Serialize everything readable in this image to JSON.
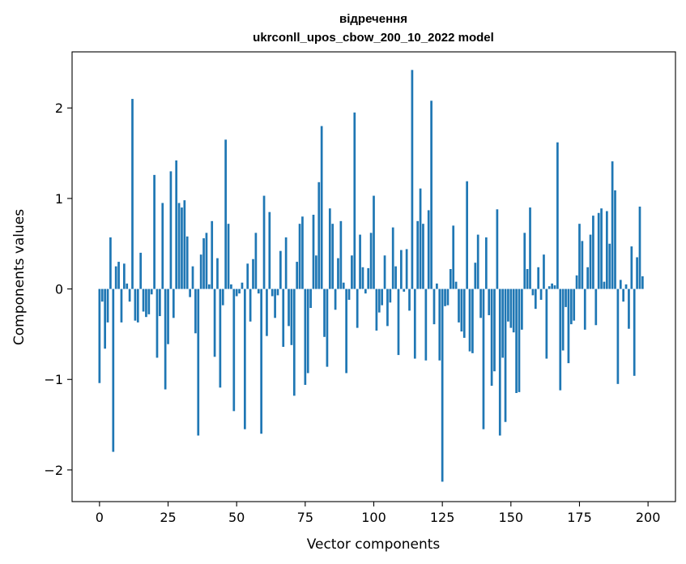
{
  "chart_data": {
    "type": "bar",
    "title": "відречення",
    "subtitle": "ukrconll_upos_cbow_200_10_2022 model",
    "xlabel": "Vector components",
    "ylabel": "Components values",
    "xlim": [
      -10,
      210
    ],
    "ylim": [
      -2.35,
      2.62
    ],
    "xticks": [
      0,
      25,
      50,
      75,
      100,
      125,
      150,
      175,
      200
    ],
    "yticks": [
      -2,
      -1,
      0,
      1,
      2
    ],
    "ytick_labels": [
      "−2",
      "−1",
      "0",
      "1",
      "2"
    ],
    "grid": false,
    "color": "#1f77b4",
    "values": [
      -1.04,
      -0.14,
      -0.66,
      -0.37,
      0.57,
      -1.8,
      0.25,
      0.3,
      -0.37,
      0.28,
      0.06,
      -0.14,
      2.1,
      -0.35,
      -0.37,
      0.4,
      -0.25,
      -0.31,
      -0.28,
      -0.06,
      1.26,
      -0.76,
      -0.3,
      0.95,
      -1.11,
      -0.61,
      1.3,
      -0.32,
      1.42,
      0.95,
      0.9,
      0.98,
      0.58,
      -0.09,
      0.25,
      -0.49,
      -1.62,
      0.38,
      0.56,
      0.62,
      0.05,
      0.75,
      -0.75,
      0.34,
      -1.09,
      -0.18,
      1.65,
      0.72,
      0.05,
      -1.35,
      -0.08,
      -0.05,
      0.07,
      -1.55,
      0.28,
      -0.36,
      0.33,
      0.62,
      -0.05,
      -1.6,
      1.03,
      -0.52,
      0.85,
      -0.08,
      -0.32,
      -0.07,
      0.42,
      -0.64,
      0.57,
      -0.41,
      -0.62,
      -1.18,
      0.3,
      0.72,
      0.8,
      -1.06,
      -0.93,
      -0.21,
      0.82,
      0.37,
      1.18,
      1.8,
      -0.53,
      -0.86,
      0.89,
      0.72,
      -0.23,
      0.34,
      0.75,
      0.07,
      -0.93,
      -0.12,
      0.37,
      1.95,
      -0.43,
      0.6,
      0.24,
      -0.05,
      0.23,
      0.62,
      1.03,
      -0.46,
      -0.26,
      -0.18,
      0.37,
      -0.41,
      -0.15,
      0.68,
      0.25,
      -0.73,
      0.43,
      -0.03,
      0.44,
      -0.24,
      2.42,
      -0.77,
      0.75,
      1.11,
      0.72,
      -0.79,
      0.87,
      2.08,
      -0.39,
      0.06,
      -0.79,
      -2.13,
      -0.19,
      -0.18,
      0.22,
      0.7,
      0.08,
      -0.37,
      -0.47,
      -0.54,
      1.19,
      -0.69,
      -0.71,
      0.29,
      0.6,
      -0.32,
      -1.55,
      0.57,
      -0.29,
      -1.07,
      -0.91,
      0.88,
      -1.62,
      -0.76,
      -1.47,
      -0.36,
      -0.43,
      -0.48,
      -1.15,
      -1.14,
      -0.45,
      0.62,
      0.22,
      0.9,
      -0.07,
      -0.22,
      0.24,
      -0.12,
      0.38,
      -0.77,
      0.03,
      0.06,
      0.04,
      1.62,
      -1.12,
      -0.68,
      -0.2,
      -0.82,
      -0.39,
      -0.35,
      0.15,
      0.72,
      0.53,
      -0.45,
      0.24,
      0.6,
      0.81,
      -0.4,
      0.84,
      0.89,
      0.08,
      0.86,
      0.5,
      1.41,
      1.09,
      -1.05,
      0.1,
      -0.14,
      0.05,
      -0.44,
      0.47,
      -0.96,
      0.35,
      0.91,
      0.14
    ]
  }
}
